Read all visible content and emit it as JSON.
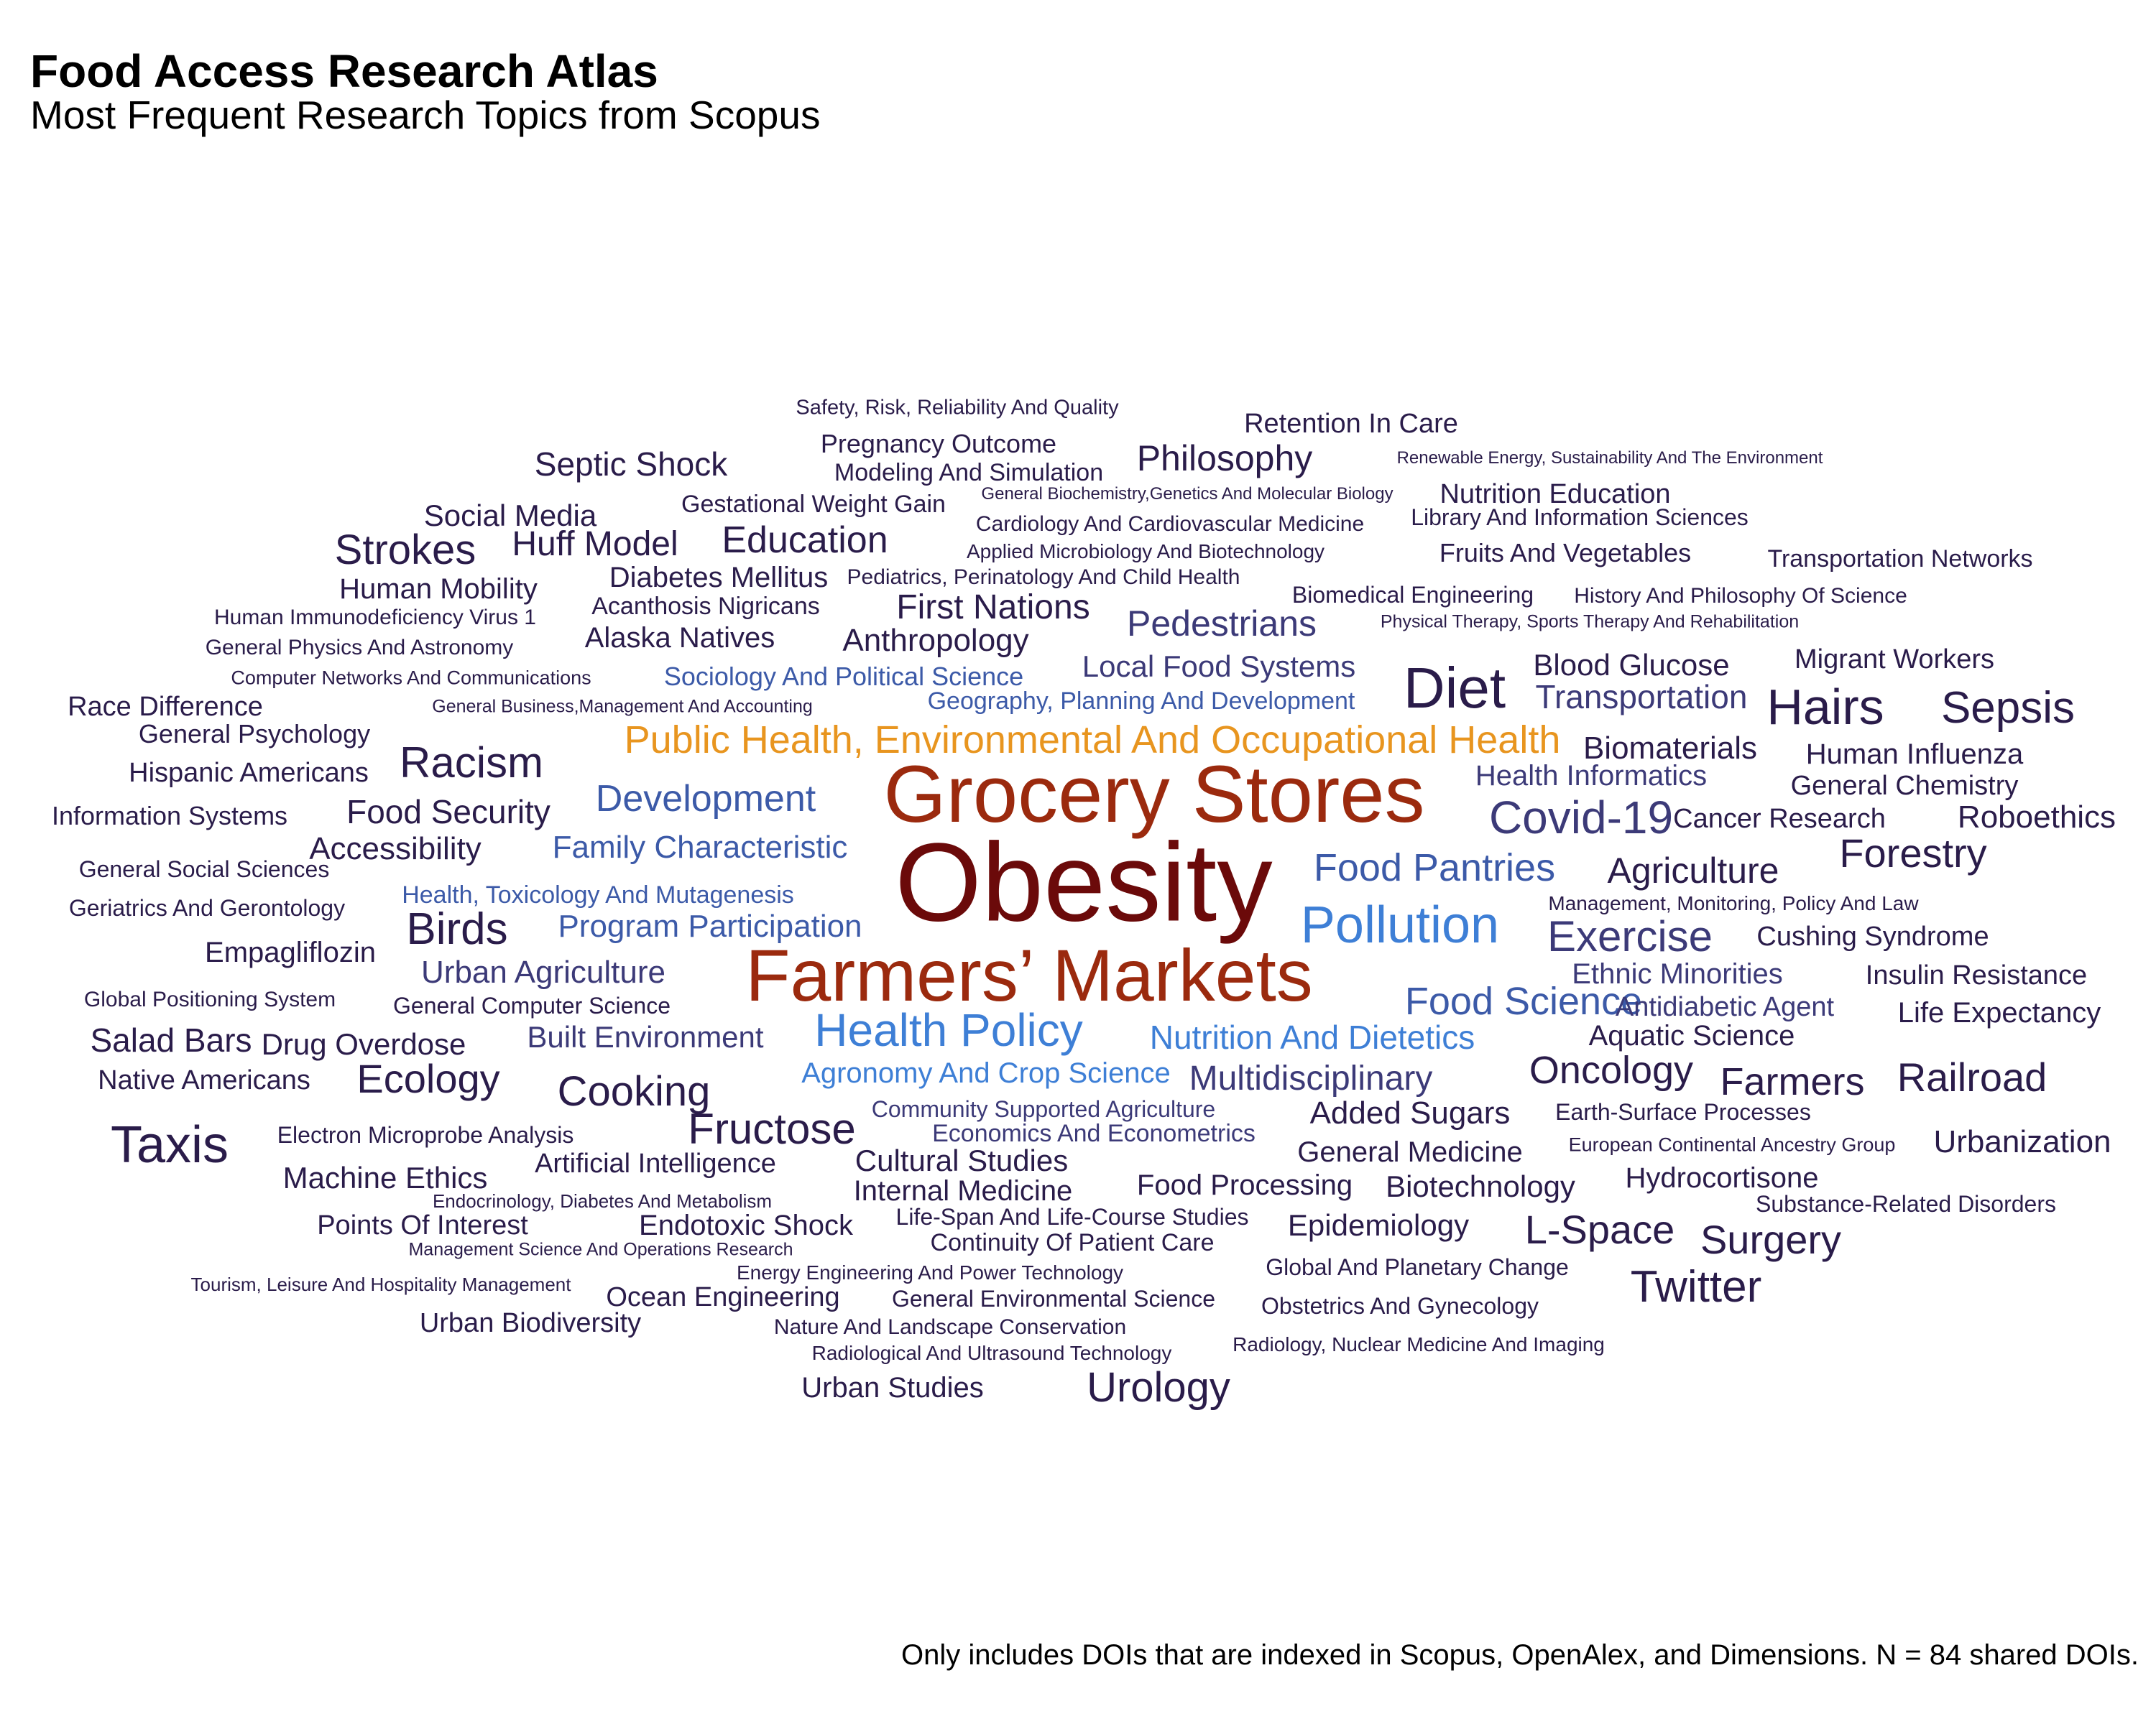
{
  "chart_data": {
    "type": "wordcloud",
    "title": "Food Access Research Atlas",
    "subtitle": "Most Frequent Research Topics from Scopus",
    "caption": "Only includes DOIs that are indexed in Scopus, OpenAlex, and Dimensions. N = 84 shared DOIs.",
    "words": [
      {
        "text": "Obesity",
        "weight": 155,
        "color": "#6b0a0a"
      },
      {
        "text": "Grocery Stores",
        "weight": 112,
        "color": "#9b2a0e"
      },
      {
        "text": "Farmers’ Markets",
        "weight": 102,
        "color": "#9b2a0e"
      },
      {
        "text": "Public Health, Environmental And Occupational Health",
        "weight": 54,
        "color": "#e8951f"
      },
      {
        "text": "Diet",
        "weight": 80,
        "color": "#2a1c4a"
      },
      {
        "text": "Pollution",
        "weight": 72,
        "color": "#3e7fd6"
      },
      {
        "text": "Covid-19",
        "weight": 64,
        "color": "#3c3a78"
      },
      {
        "text": "Hairs",
        "weight": 70,
        "color": "#2a1c4a"
      },
      {
        "text": "Taxis",
        "weight": 72,
        "color": "#2a1c4a"
      },
      {
        "text": "Health Policy",
        "weight": 64,
        "color": "#3e7fd6"
      },
      {
        "text": "Sepsis",
        "weight": 62,
        "color": "#2a1c4a"
      },
      {
        "text": "Fructose",
        "weight": 60,
        "color": "#2a1c4a"
      },
      {
        "text": "Birds",
        "weight": 62,
        "color": "#2a1c4a"
      },
      {
        "text": "Racism",
        "weight": 60,
        "color": "#2a1c4a"
      },
      {
        "text": "Strokes",
        "weight": 58,
        "color": "#2a1c4a"
      },
      {
        "text": "Twitter",
        "weight": 62,
        "color": "#2a1c4a"
      },
      {
        "text": "Exercise",
        "weight": 60,
        "color": "#3c3a78"
      },
      {
        "text": "Cooking",
        "weight": 58,
        "color": "#2a1c4a"
      },
      {
        "text": "Ecology",
        "weight": 56,
        "color": "#2a1c4a"
      },
      {
        "text": "Urology",
        "weight": 58,
        "color": "#2a1c4a"
      },
      {
        "text": "Forestry",
        "weight": 56,
        "color": "#2a1c4a"
      },
      {
        "text": "Railroad",
        "weight": 56,
        "color": "#2a1c4a"
      },
      {
        "text": "Food Pantries",
        "weight": 54,
        "color": "#3c5aa8"
      },
      {
        "text": "Food Science",
        "weight": 54,
        "color": "#3c5aa8"
      },
      {
        "text": "Development",
        "weight": 52,
        "color": "#3c5aa8"
      },
      {
        "text": "Education",
        "weight": 52,
        "color": "#2a1c4a"
      },
      {
        "text": "Oncology",
        "weight": 54,
        "color": "#2a1c4a"
      },
      {
        "text": "Farmers",
        "weight": 54,
        "color": "#2a1c4a"
      },
      {
        "text": "Surgery",
        "weight": 56,
        "color": "#2a1c4a"
      },
      {
        "text": "L-Space",
        "weight": 56,
        "color": "#2a1c4a"
      },
      {
        "text": "Philosophy",
        "weight": 50,
        "color": "#2a1c4a"
      },
      {
        "text": "Pedestrians",
        "weight": 50,
        "color": "#3c3a78"
      },
      {
        "text": "Agriculture",
        "weight": 50,
        "color": "#2a1c4a"
      },
      {
        "text": "Multidisciplinary",
        "weight": 48,
        "color": "#3c3a78"
      },
      {
        "text": "Huff Model",
        "weight": 48,
        "color": "#2a1c4a"
      },
      {
        "text": "First Nations",
        "weight": 48,
        "color": "#2a1c4a"
      },
      {
        "text": "Transportation",
        "weight": 46,
        "color": "#3c3a78"
      },
      {
        "text": "Nutrition And Dietetics",
        "weight": 46,
        "color": "#3e7fd6"
      },
      {
        "text": "Salad Bars",
        "weight": 46,
        "color": "#2a1c4a"
      },
      {
        "text": "Food Security",
        "weight": 46,
        "color": "#2a1c4a"
      },
      {
        "text": "Septic Shock",
        "weight": 46,
        "color": "#2a1c4a"
      },
      {
        "text": "Program Participation",
        "weight": 44,
        "color": "#3c5aa8"
      },
      {
        "text": "Family Characteristic",
        "weight": 44,
        "color": "#3c5aa8"
      },
      {
        "text": "Anthropology",
        "weight": 44,
        "color": "#2a1c4a"
      },
      {
        "text": "Added Sugars",
        "weight": 44,
        "color": "#2a1c4a"
      },
      {
        "text": "Accessibility",
        "weight": 44,
        "color": "#2a1c4a"
      },
      {
        "text": "Agronomy And Crop Science",
        "weight": 40,
        "color": "#3e7fd6"
      },
      {
        "text": "Urban Agriculture",
        "weight": 44,
        "color": "#3c3a78"
      },
      {
        "text": "Social Media",
        "weight": 42,
        "color": "#2a1c4a"
      },
      {
        "text": "Local Food Systems",
        "weight": 42,
        "color": "#3c3a78"
      },
      {
        "text": "Human Mobility",
        "weight": 40,
        "color": "#2a1c4a"
      },
      {
        "text": "Machine Ethics",
        "weight": 42,
        "color": "#2a1c4a"
      },
      {
        "text": "Cultural Studies",
        "weight": 42,
        "color": "#2a1c4a"
      },
      {
        "text": "Endotoxic Shock",
        "weight": 40,
        "color": "#2a1c4a"
      },
      {
        "text": "Biotechnology",
        "weight": 42,
        "color": "#2a1c4a"
      },
      {
        "text": "Internal Medicine",
        "weight": 40,
        "color": "#2a1c4a"
      },
      {
        "text": "Roboethics",
        "weight": 44,
        "color": "#2a1c4a"
      },
      {
        "text": "Biomaterials",
        "weight": 44,
        "color": "#2a1c4a"
      },
      {
        "text": "Built Environment",
        "weight": 42,
        "color": "#3c3a78"
      },
      {
        "text": "Drug Overdose",
        "weight": 42,
        "color": "#2a1c4a"
      },
      {
        "text": "Ethnic Minorities",
        "weight": 40,
        "color": "#3c3a78"
      },
      {
        "text": "Epidemiology",
        "weight": 42,
        "color": "#2a1c4a"
      },
      {
        "text": "Urbanization",
        "weight": 44,
        "color": "#2a1c4a"
      },
      {
        "text": "Empagliflozin",
        "weight": 40,
        "color": "#2a1c4a"
      },
      {
        "text": "Blood Glucose",
        "weight": 42,
        "color": "#2a1c4a"
      },
      {
        "text": "Health Informatics",
        "weight": 40,
        "color": "#3c3a78"
      },
      {
        "text": "Diabetes Mellitus",
        "weight": 40,
        "color": "#2a1c4a"
      },
      {
        "text": "Alaska Natives",
        "weight": 40,
        "color": "#2a1c4a"
      },
      {
        "text": "General Medicine",
        "weight": 40,
        "color": "#2a1c4a"
      },
      {
        "text": "Food Processing",
        "weight": 40,
        "color": "#2a1c4a"
      },
      {
        "text": "Aquatic Science",
        "weight": 40,
        "color": "#2a1c4a"
      },
      {
        "text": "Life Expectancy",
        "weight": 40,
        "color": "#2a1c4a"
      },
      {
        "text": "Human Influenza",
        "weight": 40,
        "color": "#2a1c4a"
      },
      {
        "text": "Hydrocortisone",
        "weight": 40,
        "color": "#2a1c4a"
      },
      {
        "text": "Native Americans",
        "weight": 38,
        "color": "#2a1c4a"
      },
      {
        "text": "Race Difference",
        "weight": 38,
        "color": "#2a1c4a"
      },
      {
        "text": "Points Of Interest",
        "weight": 38,
        "color": "#2a1c4a"
      },
      {
        "text": "Antidiabetic Agent",
        "weight": 38,
        "color": "#3c3a78"
      },
      {
        "text": "Insulin Resistance",
        "weight": 38,
        "color": "#2a1c4a"
      },
      {
        "text": "Cushing Syndrome",
        "weight": 38,
        "color": "#2a1c4a"
      },
      {
        "text": "Migrant Workers",
        "weight": 38,
        "color": "#2a1c4a"
      },
      {
        "text": "Retention In Care",
        "weight": 38,
        "color": "#2a1c4a"
      },
      {
        "text": "Artificial Intelligence",
        "weight": 38,
        "color": "#2a1c4a"
      },
      {
        "text": "Urban Biodiversity",
        "weight": 38,
        "color": "#2a1c4a"
      },
      {
        "text": "Ocean Engineering",
        "weight": 38,
        "color": "#2a1c4a"
      },
      {
        "text": "Urban Studies",
        "weight": 40,
        "color": "#2a1c4a"
      },
      {
        "text": "Cancer Research",
        "weight": 38,
        "color": "#2a1c4a"
      },
      {
        "text": "General Chemistry",
        "weight": 38,
        "color": "#2a1c4a"
      },
      {
        "text": "Hispanic Americans",
        "weight": 38,
        "color": "#2a1c4a"
      },
      {
        "text": "Information Systems",
        "weight": 36,
        "color": "#2a1c4a"
      },
      {
        "text": "Nutrition Education",
        "weight": 38,
        "color": "#2a1c4a"
      },
      {
        "text": "Pregnancy Outcome",
        "weight": 36,
        "color": "#2a1c4a"
      },
      {
        "text": "Sociology And Political Science",
        "weight": 36,
        "color": "#3c5aa8"
      },
      {
        "text": "Geography, Planning And Development",
        "weight": 34,
        "color": "#3c5aa8"
      },
      {
        "text": "Health, Toxicology And Mutagenesis",
        "weight": 34,
        "color": "#3c5aa8"
      },
      {
        "text": "Fruits And Vegetables",
        "weight": 36,
        "color": "#2a1c4a"
      },
      {
        "text": "General Psychology",
        "weight": 36,
        "color": "#2a1c4a"
      },
      {
        "text": "Continuity Of Patient Care",
        "weight": 34,
        "color": "#2a1c4a"
      },
      {
        "text": "Economics And Econometrics",
        "weight": 34,
        "color": "#3c3a78"
      },
      {
        "text": "Community Supported Agriculture",
        "weight": 32,
        "color": "#3c3a78"
      },
      {
        "text": "Modeling And Simulation",
        "weight": 34,
        "color": "#2a1c4a"
      },
      {
        "text": "Gestational Weight Gain",
        "weight": 34,
        "color": "#2a1c4a"
      },
      {
        "text": "Acanthosis Nigricans",
        "weight": 34,
        "color": "#2a1c4a"
      },
      {
        "text": "Transportation Networks",
        "weight": 34,
        "color": "#2a1c4a"
      },
      {
        "text": "Biomedical Engineering",
        "weight": 32,
        "color": "#2a1c4a"
      },
      {
        "text": "General Environmental Science",
        "weight": 32,
        "color": "#2a1c4a"
      },
      {
        "text": "Global And Planetary Change",
        "weight": 32,
        "color": "#2a1c4a"
      },
      {
        "text": "Obstetrics And Gynecology",
        "weight": 32,
        "color": "#2a1c4a"
      },
      {
        "text": "Earth-Surface Processes",
        "weight": 32,
        "color": "#2a1c4a"
      },
      {
        "text": "General Social Sciences",
        "weight": 32,
        "color": "#2a1c4a"
      },
      {
        "text": "General Computer Science",
        "weight": 32,
        "color": "#2a1c4a"
      },
      {
        "text": "Geriatrics And Gerontology",
        "weight": 32,
        "color": "#2a1c4a"
      },
      {
        "text": "Library And Information Sciences",
        "weight": 32,
        "color": "#2a1c4a"
      },
      {
        "text": "Life-Span And Life-Course Studies",
        "weight": 32,
        "color": "#2a1c4a"
      },
      {
        "text": "Substance-Related Disorders",
        "weight": 32,
        "color": "#2a1c4a"
      },
      {
        "text": "Electron Microprobe Analysis",
        "weight": 32,
        "color": "#2a1c4a"
      },
      {
        "text": "General Physics And Astronomy",
        "weight": 30,
        "color": "#2a1c4a"
      },
      {
        "text": "Global Positioning System",
        "weight": 30,
        "color": "#2a1c4a"
      },
      {
        "text": "Nature And Landscape Conservation",
        "weight": 30,
        "color": "#2a1c4a"
      },
      {
        "text": "History And Philosophy Of Science",
        "weight": 30,
        "color": "#2a1c4a"
      },
      {
        "text": "Human Immunodeficiency Virus 1",
        "weight": 30,
        "color": "#2a1c4a"
      },
      {
        "text": "Cardiology And Cardiovascular Medicine",
        "weight": 30,
        "color": "#2a1c4a"
      },
      {
        "text": "Pediatrics, Perinatology And Child Health",
        "weight": 30,
        "color": "#2a1c4a"
      },
      {
        "text": "Safety, Risk, Reliability And Quality",
        "weight": 29,
        "color": "#2a1c4a"
      },
      {
        "text": "Management, Monitoring, Policy And Law",
        "weight": 28,
        "color": "#2a1c4a"
      },
      {
        "text": "Applied Microbiology And Biotechnology",
        "weight": 28,
        "color": "#2a1c4a"
      },
      {
        "text": "Radiological And Ultrasound Technology",
        "weight": 28,
        "color": "#2a1c4a"
      },
      {
        "text": "Energy Engineering And Power Technology",
        "weight": 28,
        "color": "#2a1c4a"
      },
      {
        "text": "Radiology, Nuclear Medicine And Imaging",
        "weight": 28,
        "color": "#2a1c4a"
      },
      {
        "text": "Computer Networks And Communications",
        "weight": 27,
        "color": "#2a1c4a"
      },
      {
        "text": "European Continental Ancestry Group",
        "weight": 27,
        "color": "#2a1c4a"
      },
      {
        "text": "Tourism, Leisure And Hospitality Management",
        "weight": 26,
        "color": "#2a1c4a"
      },
      {
        "text": "Endocrinology, Diabetes And Metabolism",
        "weight": 26,
        "color": "#2a1c4a"
      },
      {
        "text": "Management Science And Operations Research",
        "weight": 25,
        "color": "#2a1c4a"
      },
      {
        "text": "General Business,Management And Accounting",
        "weight": 25,
        "color": "#2a1c4a"
      },
      {
        "text": "Physical Therapy, Sports Therapy And Rehabilitation",
        "weight": 25,
        "color": "#2a1c4a"
      },
      {
        "text": "General Biochemistry,Genetics And Molecular Biology",
        "weight": 24,
        "color": "#2a1c4a"
      },
      {
        "text": "Renewable Energy, Sustainability And The Environment",
        "weight": 24,
        "color": "#2a1c4a"
      }
    ]
  }
}
